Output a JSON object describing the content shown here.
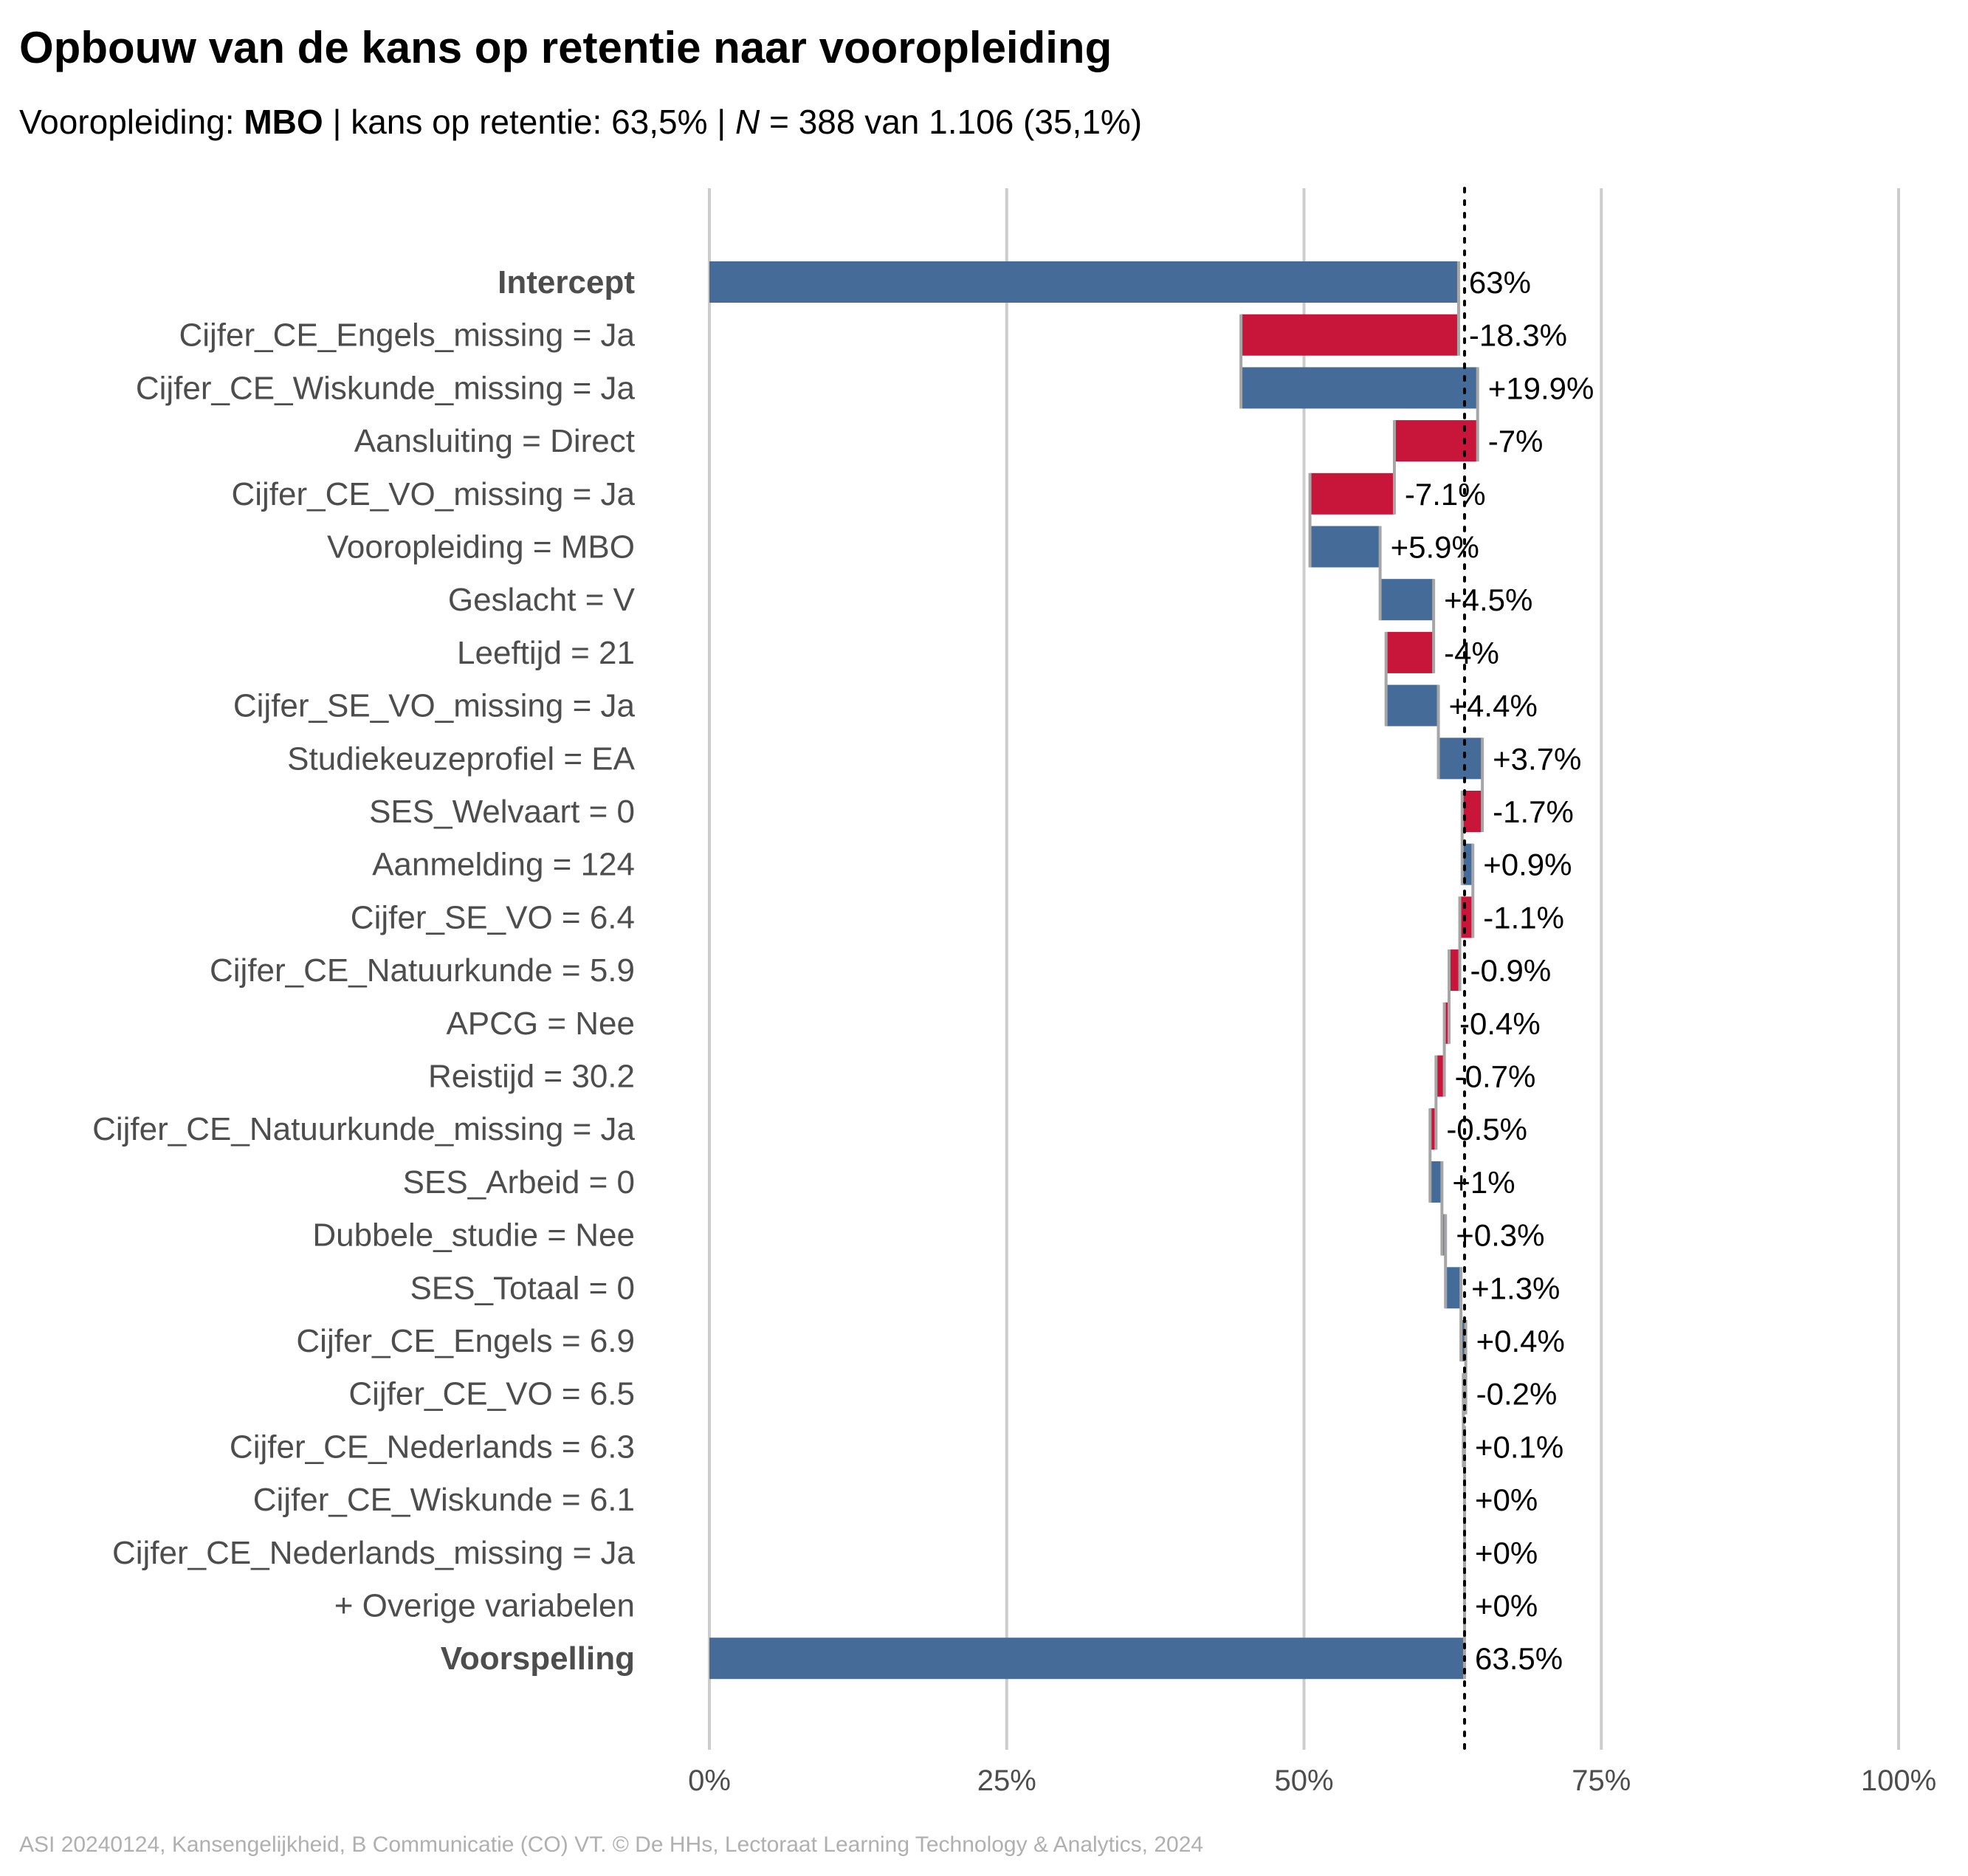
{
  "title": "Opbouw van de kans op retentie naar vooropleiding",
  "subtitle": {
    "prefix": "Vooropleiding: ",
    "group": "MBO",
    "middle": " | kans op retentie: 63,5% | ",
    "n_symbol": "N",
    "n_text": " = 388 van 1.106 (35,1%)"
  },
  "caption": "ASI 20240124, Kansengelijkheid, B Communicatie (CO) VT. © De HHs, Lectoraat Learning Technology & Analytics, 2024",
  "colors": {
    "positive": "#456C98",
    "negative": "#C8153A",
    "total": "#456C98",
    "connector": "#a6a6a6",
    "grid": "#cccccc",
    "label": "#4d4d4d"
  },
  "chart_data": {
    "type": "bar",
    "subtype": "waterfall-horizontal",
    "xlim": [
      0,
      100
    ],
    "xticks": [
      0,
      25,
      50,
      75,
      100
    ],
    "xtick_labels": [
      "0%",
      "25%",
      "50%",
      "75%",
      "100%"
    ],
    "reference_line": 63.5,
    "grid": true,
    "bars": [
      {
        "label": "Intercept",
        "bold": true,
        "start": 0,
        "end": 63,
        "kind": "total",
        "value_label": "63%"
      },
      {
        "label": "Cijfer_CE_Engels_missing = Ja",
        "start": 63,
        "end": 44.7,
        "kind": "negative",
        "value_label": "-18.3%"
      },
      {
        "label": "Cijfer_CE_Wiskunde_missing = Ja",
        "start": 44.7,
        "end": 64.6,
        "kind": "positive",
        "value_label": "+19.9%"
      },
      {
        "label": "Aansluiting = Direct",
        "start": 64.6,
        "end": 57.6,
        "kind": "negative",
        "value_label": "-7%"
      },
      {
        "label": "Cijfer_CE_VO_missing = Ja",
        "start": 57.6,
        "end": 50.5,
        "kind": "negative",
        "value_label": "-7.1%"
      },
      {
        "label": "Vooropleiding = MBO",
        "start": 50.5,
        "end": 56.4,
        "kind": "positive",
        "value_label": "+5.9%"
      },
      {
        "label": "Geslacht = V",
        "start": 56.4,
        "end": 60.9,
        "kind": "positive",
        "value_label": "+4.5%"
      },
      {
        "label": "Leeftijd = 21",
        "start": 60.9,
        "end": 56.9,
        "kind": "negative",
        "value_label": "-4%"
      },
      {
        "label": "Cijfer_SE_VO_missing = Ja",
        "start": 56.9,
        "end": 61.3,
        "kind": "positive",
        "value_label": "+4.4%"
      },
      {
        "label": "Studiekeuzeprofiel = EA",
        "start": 61.3,
        "end": 65,
        "kind": "positive",
        "value_label": "+3.7%"
      },
      {
        "label": "SES_Welvaart = 0",
        "start": 65,
        "end": 63.3,
        "kind": "negative",
        "value_label": "-1.7%"
      },
      {
        "label": "Aanmelding = 124",
        "start": 63.3,
        "end": 64.2,
        "kind": "positive",
        "value_label": "+0.9%"
      },
      {
        "label": "Cijfer_SE_VO = 6.4",
        "start": 64.2,
        "end": 63.1,
        "kind": "negative",
        "value_label": "-1.1%"
      },
      {
        "label": "Cijfer_CE_Natuurkunde = 5.9",
        "start": 63.1,
        "end": 62.2,
        "kind": "negative",
        "value_label": "-0.9%"
      },
      {
        "label": "APCG = Nee",
        "start": 62.2,
        "end": 61.8,
        "kind": "negative",
        "value_label": "-0.4%"
      },
      {
        "label": "Reistijd = 30.2",
        "start": 61.8,
        "end": 61.1,
        "kind": "negative",
        "value_label": "-0.7%"
      },
      {
        "label": "Cijfer_CE_Natuurkunde_missing = Ja",
        "start": 61.1,
        "end": 60.6,
        "kind": "negative",
        "value_label": "-0.5%"
      },
      {
        "label": "SES_Arbeid = 0",
        "start": 60.6,
        "end": 61.6,
        "kind": "positive",
        "value_label": "+1%"
      },
      {
        "label": "Dubbele_studie = Nee",
        "start": 61.6,
        "end": 61.9,
        "kind": "positive",
        "value_label": "+0.3%"
      },
      {
        "label": "SES_Totaal = 0",
        "start": 61.9,
        "end": 63.2,
        "kind": "positive",
        "value_label": "+1.3%"
      },
      {
        "label": "Cijfer_CE_Engels = 6.9",
        "start": 63.2,
        "end": 63.6,
        "kind": "positive",
        "value_label": "+0.4%"
      },
      {
        "label": "Cijfer_CE_VO = 6.5",
        "start": 63.6,
        "end": 63.4,
        "kind": "negative",
        "value_label": "-0.2%"
      },
      {
        "label": "Cijfer_CE_Nederlands = 6.3",
        "start": 63.4,
        "end": 63.5,
        "kind": "positive",
        "value_label": "+0.1%"
      },
      {
        "label": "Cijfer_CE_Wiskunde = 6.1",
        "start": 63.5,
        "end": 63.5,
        "kind": "positive",
        "value_label": "+0%"
      },
      {
        "label": "Cijfer_CE_Nederlands_missing = Ja",
        "start": 63.5,
        "end": 63.5,
        "kind": "positive",
        "value_label": "+0%"
      },
      {
        "label": "+ Overige variabelen",
        "start": 63.5,
        "end": 63.5,
        "kind": "positive",
        "value_label": "+0%"
      },
      {
        "label": "Voorspelling",
        "bold": true,
        "start": 0,
        "end": 63.5,
        "kind": "total",
        "value_label": "63.5%"
      }
    ]
  }
}
